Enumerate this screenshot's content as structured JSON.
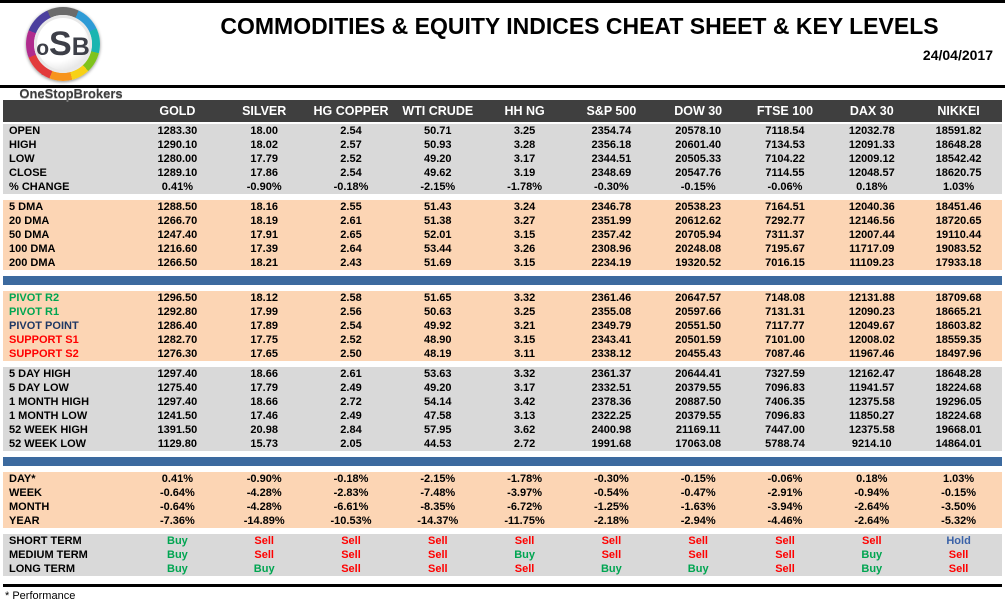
{
  "header": {
    "logo_text": "oSB",
    "brand": "OneStopBrokers",
    "title": "COMMODITIES & EQUITY INDICES CHEAT SHEET & KEY LEVELS",
    "date": "24/04/2017"
  },
  "colors": {
    "header_bg": "#3f3f3f",
    "gray_row": "#d9d9d9",
    "peach_row": "#fcd5b4",
    "separator_blue": "#3c6a9f",
    "buy_green": "#00a551",
    "sell_red": "#ff0000",
    "hold_blue": "#3a62a8",
    "pivot_navy": "#1f3864"
  },
  "columns": [
    "GOLD",
    "SILVER",
    "HG COPPER",
    "WTI CRUDE",
    "HH NG",
    "S&P 500",
    "DOW 30",
    "FTSE 100",
    "DAX 30",
    "NIKKEI"
  ],
  "blocks": [
    {
      "bg": "gray",
      "after": "gap",
      "rows": [
        {
          "label": "OPEN",
          "values": [
            "1283.30",
            "18.00",
            "2.54",
            "50.71",
            "3.25",
            "2354.74",
            "20578.10",
            "7118.54",
            "12032.78",
            "18591.82"
          ]
        },
        {
          "label": "HIGH",
          "values": [
            "1290.10",
            "18.02",
            "2.57",
            "50.93",
            "3.28",
            "2356.18",
            "20601.40",
            "7134.53",
            "12091.33",
            "18648.28"
          ]
        },
        {
          "label": "LOW",
          "values": [
            "1280.00",
            "17.79",
            "2.52",
            "49.20",
            "3.17",
            "2344.51",
            "20505.33",
            "7104.22",
            "12009.12",
            "18542.42"
          ]
        },
        {
          "label": "CLOSE",
          "values": [
            "1289.10",
            "17.86",
            "2.54",
            "49.62",
            "3.19",
            "2348.69",
            "20547.76",
            "7114.55",
            "12048.57",
            "18620.75"
          ]
        },
        {
          "label": "% CHANGE",
          "values": [
            "0.41%",
            "-0.90%",
            "-0.18%",
            "-2.15%",
            "-1.78%",
            "-0.30%",
            "-0.15%",
            "-0.06%",
            "0.18%",
            "1.03%"
          ]
        }
      ]
    },
    {
      "bg": "peach",
      "after": "blue",
      "rows": [
        {
          "label": "5 DMA",
          "values": [
            "1288.50",
            "18.16",
            "2.55",
            "51.43",
            "3.24",
            "2346.78",
            "20538.23",
            "7164.51",
            "12040.36",
            "18451.46"
          ]
        },
        {
          "label": "20 DMA",
          "values": [
            "1266.70",
            "18.19",
            "2.61",
            "51.38",
            "3.27",
            "2351.99",
            "20612.62",
            "7292.77",
            "12146.56",
            "18720.65"
          ]
        },
        {
          "label": "50 DMA",
          "values": [
            "1247.40",
            "17.91",
            "2.65",
            "52.01",
            "3.15",
            "2357.42",
            "20705.94",
            "7311.37",
            "12007.44",
            "19110.44"
          ]
        },
        {
          "label": "100 DMA",
          "values": [
            "1216.60",
            "17.39",
            "2.64",
            "53.44",
            "3.26",
            "2308.96",
            "20248.08",
            "7195.67",
            "11717.09",
            "19083.52"
          ]
        },
        {
          "label": "200 DMA",
          "values": [
            "1266.50",
            "18.21",
            "2.43",
            "51.69",
            "3.15",
            "2234.19",
            "19320.52",
            "7016.15",
            "11109.23",
            "17933.18"
          ]
        }
      ]
    },
    {
      "bg": "peach",
      "after": "gap",
      "rows": [
        {
          "label": "PIVOT R2",
          "color": "green",
          "values": [
            "1296.50",
            "18.12",
            "2.58",
            "51.65",
            "3.32",
            "2361.46",
            "20647.57",
            "7148.08",
            "12131.88",
            "18709.68"
          ]
        },
        {
          "label": "PIVOT R1",
          "color": "green",
          "values": [
            "1292.80",
            "17.99",
            "2.56",
            "50.63",
            "3.25",
            "2355.08",
            "20597.66",
            "7131.31",
            "12090.23",
            "18665.21"
          ]
        },
        {
          "label": "PIVOT POINT",
          "color": "navy",
          "values": [
            "1286.40",
            "17.89",
            "2.54",
            "49.92",
            "3.21",
            "2349.79",
            "20551.50",
            "7117.77",
            "12049.67",
            "18603.82"
          ]
        },
        {
          "label": "SUPPORT S1",
          "color": "red",
          "values": [
            "1282.70",
            "17.75",
            "2.52",
            "48.90",
            "3.15",
            "2343.41",
            "20501.59",
            "7101.00",
            "12008.02",
            "18559.35"
          ]
        },
        {
          "label": "SUPPORT S2",
          "color": "red",
          "values": [
            "1276.30",
            "17.65",
            "2.50",
            "48.19",
            "3.11",
            "2338.12",
            "20455.43",
            "7087.46",
            "11967.46",
            "18497.96"
          ]
        }
      ]
    },
    {
      "bg": "gray",
      "after": "blue",
      "rows": [
        {
          "label": "5 DAY HIGH",
          "values": [
            "1297.40",
            "18.66",
            "2.61",
            "53.63",
            "3.32",
            "2361.37",
            "20644.41",
            "7327.59",
            "12162.47",
            "18648.28"
          ]
        },
        {
          "label": "5 DAY LOW",
          "values": [
            "1275.40",
            "17.79",
            "2.49",
            "49.20",
            "3.17",
            "2332.51",
            "20379.55",
            "7096.83",
            "11941.57",
            "18224.68"
          ]
        },
        {
          "label": "1 MONTH HIGH",
          "values": [
            "1297.40",
            "18.66",
            "2.72",
            "54.14",
            "3.42",
            "2378.36",
            "20887.50",
            "7406.35",
            "12375.58",
            "19296.05"
          ]
        },
        {
          "label": "1 MONTH LOW",
          "values": [
            "1241.50",
            "17.46",
            "2.49",
            "47.58",
            "3.13",
            "2322.25",
            "20379.55",
            "7096.83",
            "11850.27",
            "18224.68"
          ]
        },
        {
          "label": "52 WEEK HIGH",
          "values": [
            "1391.50",
            "20.98",
            "2.84",
            "57.95",
            "3.62",
            "2400.98",
            "21169.11",
            "7447.00",
            "12375.58",
            "19668.01"
          ]
        },
        {
          "label": "52 WEEK LOW",
          "values": [
            "1129.80",
            "15.73",
            "2.05",
            "44.53",
            "2.72",
            "1991.68",
            "17063.08",
            "5788.74",
            "9214.10",
            "14864.01"
          ]
        }
      ]
    },
    {
      "bg": "peach",
      "after": "gap",
      "rows": [
        {
          "label": "DAY*",
          "values": [
            "0.41%",
            "-0.90%",
            "-0.18%",
            "-2.15%",
            "-1.78%",
            "-0.30%",
            "-0.15%",
            "-0.06%",
            "0.18%",
            "1.03%"
          ]
        },
        {
          "label": "WEEK",
          "values": [
            "-0.64%",
            "-4.28%",
            "-2.83%",
            "-7.48%",
            "-3.97%",
            "-0.54%",
            "-0.47%",
            "-2.91%",
            "-0.94%",
            "-0.15%"
          ]
        },
        {
          "label": "MONTH",
          "values": [
            "-0.64%",
            "-4.28%",
            "-6.61%",
            "-8.35%",
            "-6.72%",
            "-1.25%",
            "-1.63%",
            "-3.94%",
            "-2.64%",
            "-3.50%"
          ]
        },
        {
          "label": "YEAR",
          "values": [
            "-7.36%",
            "-14.89%",
            "-10.53%",
            "-14.37%",
            "-11.75%",
            "-2.18%",
            "-2.94%",
            "-4.46%",
            "-2.64%",
            "-5.32%"
          ]
        }
      ]
    },
    {
      "bg": "gray",
      "type": "signals",
      "after": null,
      "rows": [
        {
          "label": "SHORT TERM",
          "values": [
            "Buy",
            "Sell",
            "Sell",
            "Sell",
            "Sell",
            "Sell",
            "Sell",
            "Sell",
            "Sell",
            "Hold"
          ]
        },
        {
          "label": "MEDIUM TERM",
          "values": [
            "Buy",
            "Sell",
            "Sell",
            "Sell",
            "Buy",
            "Sell",
            "Sell",
            "Sell",
            "Buy",
            "Sell"
          ]
        },
        {
          "label": "LONG TERM",
          "values": [
            "Buy",
            "Buy",
            "Sell",
            "Sell",
            "Sell",
            "Buy",
            "Buy",
            "Sell",
            "Buy",
            "Sell"
          ]
        }
      ]
    }
  ],
  "footnote": "* Performance"
}
